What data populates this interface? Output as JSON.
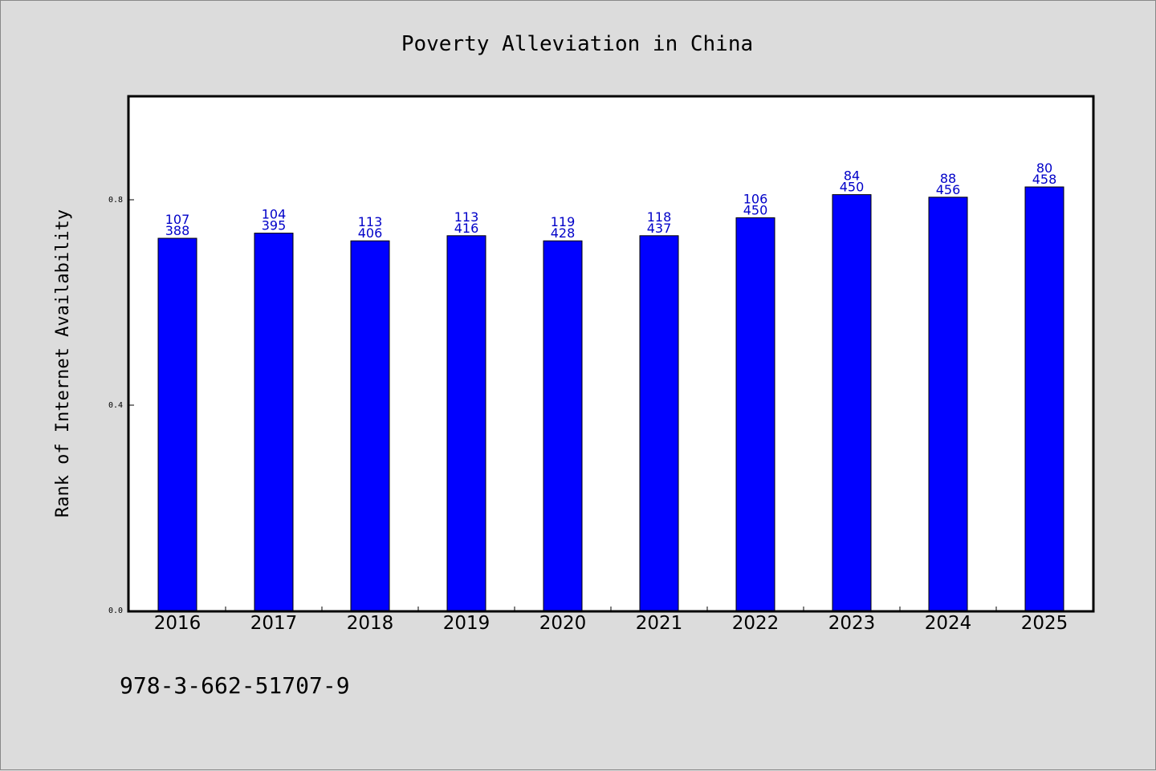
{
  "chart_data": {
    "type": "bar",
    "title": "Poverty Alleviation in China",
    "xlabel": "",
    "ylabel": "Rank of Internet Availability",
    "categories": [
      "2016",
      "2017",
      "2018",
      "2019",
      "2020",
      "2021",
      "2022",
      "2023",
      "2024",
      "2025"
    ],
    "values": [
      0.725,
      0.735,
      0.72,
      0.73,
      0.72,
      0.73,
      0.765,
      0.81,
      0.805,
      0.825
    ],
    "labels_top": [
      "107",
      "104",
      "113",
      "113",
      "119",
      "118",
      "106",
      "84",
      "88",
      "80"
    ],
    "labels_bottom": [
      "388",
      "395",
      "406",
      "416",
      "428",
      "437",
      "450",
      "450",
      "456",
      "458"
    ],
    "ylim": [
      0,
      1.0
    ],
    "yticks": [
      "0.0",
      "0.4",
      "0.8"
    ],
    "ytick_values": [
      0.0,
      0.4,
      0.8
    ],
    "bar_color": "#0000ff",
    "label_color": "#0000c8",
    "grid": false,
    "legend": "none"
  },
  "footer": "978-3-662-51707-9"
}
